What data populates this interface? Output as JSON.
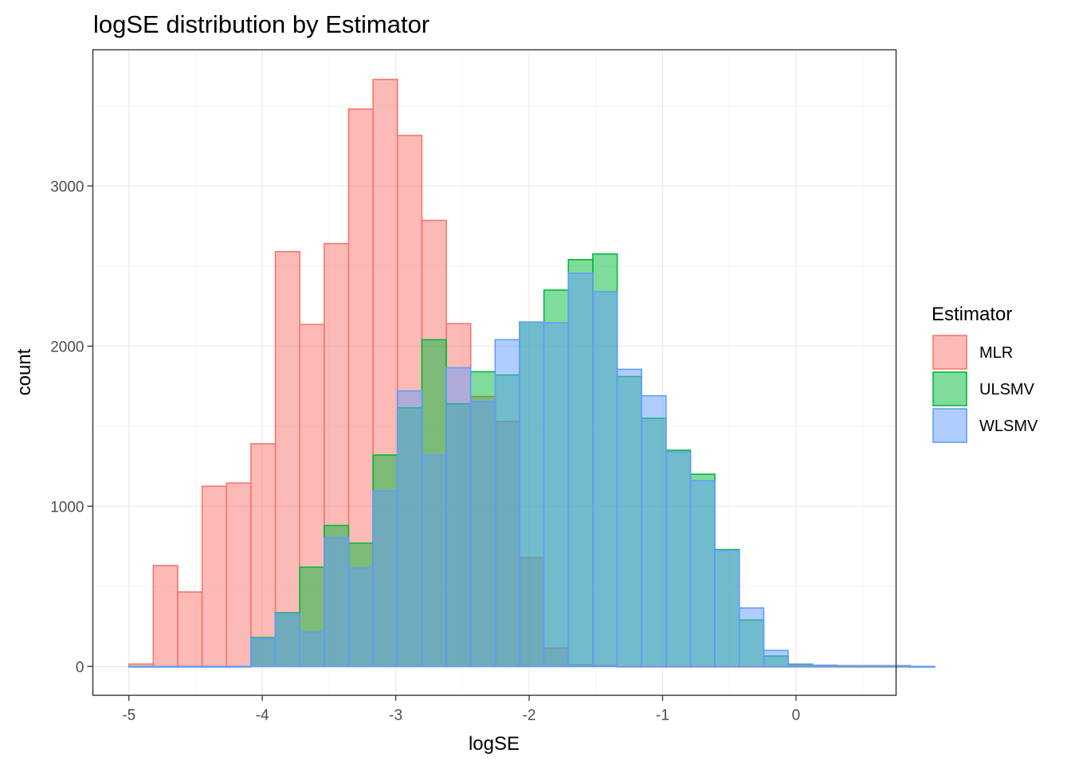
{
  "chart_data": {
    "type": "bar",
    "title": "logSE distribution by Estimator",
    "xlabel": "logSE",
    "ylabel": "count",
    "xlim": [
      -5.27,
      0.75
    ],
    "ylim": [
      -180,
      3850
    ],
    "x_ticks": [
      -5,
      -4,
      -3,
      -2,
      -1,
      0
    ],
    "x_tick_labels": [
      "-5",
      "-4",
      "-3",
      "-2",
      "-1",
      "0"
    ],
    "y_ticks": [
      0,
      1000,
      2000,
      3000
    ],
    "y_tick_labels": [
      "0",
      "1000",
      "2000",
      "3000"
    ],
    "grid": true,
    "bin_start": -5.0,
    "bin_width": 0.183,
    "legend": {
      "title": "Estimator",
      "position": "right"
    },
    "series": [
      {
        "name": "MLR",
        "fill": "#F8766D",
        "stroke": "#F8766D",
        "values": [
          15,
          630,
          465,
          1125,
          1145,
          1390,
          2590,
          2135,
          2640,
          3480,
          3665,
          3315,
          2785,
          2140,
          1685,
          1530,
          680,
          115,
          10,
          5,
          0,
          0,
          0,
          0,
          0,
          0,
          0,
          0,
          0,
          0,
          0,
          0,
          0
        ]
      },
      {
        "name": "ULSMV",
        "fill": "#00BA38",
        "stroke": "#00BA38",
        "values": [
          0,
          0,
          0,
          0,
          0,
          180,
          335,
          620,
          880,
          770,
          1320,
          1615,
          2040,
          1640,
          1840,
          1820,
          2150,
          2350,
          2540,
          2575,
          1810,
          1550,
          1350,
          1200,
          730,
          290,
          65,
          10,
          5,
          5,
          5,
          5,
          0
        ]
      },
      {
        "name": "WLSMV",
        "fill": "#619CFF",
        "stroke": "#619CFF",
        "values": [
          0,
          0,
          0,
          0,
          0,
          175,
          330,
          215,
          805,
          615,
          1095,
          1720,
          1320,
          1865,
          1655,
          2040,
          2150,
          2145,
          2455,
          2340,
          1855,
          1690,
          1340,
          1160,
          725,
          365,
          100,
          15,
          8,
          5,
          5,
          5,
          0
        ]
      }
    ]
  }
}
